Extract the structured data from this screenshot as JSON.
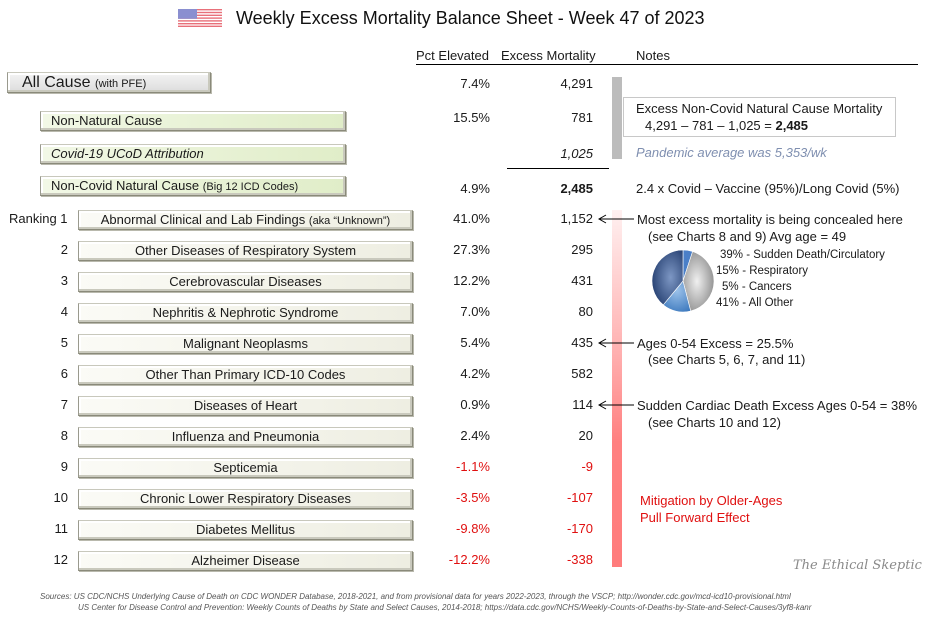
{
  "header": {
    "title": "Weekly Excess Mortality Balance Sheet - Week 47 of 2023",
    "flag_icon": "us-flag-icon"
  },
  "columns": {
    "pct_elevated": "Pct Elevated",
    "excess_mortality": "Excess Mortality",
    "notes": "Notes"
  },
  "summary_rows": [
    {
      "label": "All Cause",
      "suffix": "(with PFE)",
      "pct": "7.4%",
      "excess": "4,291"
    },
    {
      "label": "Non-Natural Cause",
      "suffix": "",
      "pct": "15.5%",
      "excess": "781"
    },
    {
      "label": "Covid-19 UCoD Attribution",
      "suffix": "",
      "pct": "",
      "excess": "1,025"
    },
    {
      "label": "Non-Covid Natural Cause",
      "suffix": "(Big 12 ICD Codes)",
      "pct": "4.9%",
      "excess": "2,485"
    }
  ],
  "ranking_label": "Ranking 1",
  "categories": [
    {
      "rank": "1",
      "label": "Abnormal Clinical and Lab Findings",
      "suffix": "(aka “Unknown”)",
      "pct": "41.0%",
      "excess": "1,152",
      "negative": false
    },
    {
      "rank": "2",
      "label": "Other Diseases of Respiratory System",
      "suffix": "",
      "pct": "27.3%",
      "excess": "295",
      "negative": false
    },
    {
      "rank": "3",
      "label": "Cerebrovascular Diseases",
      "suffix": "",
      "pct": "12.2%",
      "excess": "431",
      "negative": false
    },
    {
      "rank": "4",
      "label": "Nephritis & Nephrotic Syndrome",
      "suffix": "",
      "pct": "7.0%",
      "excess": "80",
      "negative": false
    },
    {
      "rank": "5",
      "label": "Malignant Neoplasms",
      "suffix": "",
      "pct": "5.4%",
      "excess": "435",
      "negative": false
    },
    {
      "rank": "6",
      "label": "Other Than Primary ICD-10 Codes",
      "suffix": "",
      "pct": "4.2%",
      "excess": "582",
      "negative": false
    },
    {
      "rank": "7",
      "label": "Diseases of Heart",
      "suffix": "",
      "pct": "0.9%",
      "excess": "114",
      "negative": false
    },
    {
      "rank": "8",
      "label": "Influenza and Pneumonia",
      "suffix": "",
      "pct": "2.4%",
      "excess": "20",
      "negative": false
    },
    {
      "rank": "9",
      "label": "Septicemia",
      "suffix": "",
      "pct": "-1.1%",
      "excess": "-9",
      "negative": true
    },
    {
      "rank": "10",
      "label": "Chronic Lower Respiratory Diseases",
      "suffix": "",
      "pct": "-3.5%",
      "excess": "-107",
      "negative": true
    },
    {
      "rank": "11",
      "label": "Diabetes Mellitus",
      "suffix": "",
      "pct": "-9.8%",
      "excess": "-170",
      "negative": true
    },
    {
      "rank": "12",
      "label": "Alzheimer Disease",
      "suffix": "",
      "pct": "-12.2%",
      "excess": "-338",
      "negative": true
    }
  ],
  "notes": {
    "calc_title": "Excess Non-Covid Natural Cause Mortality",
    "calc_expr": "4,291 – 781 – 1,025 = ",
    "calc_result": "2,485",
    "pandemic_avg": "Pandemic average was 5,353/wk",
    "covid_ratio": "2.4 x Covid – Vaccine (95%)/Long Covid (5%)",
    "concealed_1": "Most excess mortality is being concealed here",
    "concealed_2": "(see Charts 8 and 9) Avg age = 49",
    "ages_1": "Ages 0-54 Excess = 25.5%",
    "ages_2": "(see Charts 5, 6, 7, and 11)",
    "cardiac_1": "Sudden Cardiac Death Excess Ages 0-54 = 38%",
    "cardiac_2": "(see Charts 10 and 12)",
    "mitigation_1": "Mitigation by Older-Ages",
    "mitigation_2": "Pull Forward Effect"
  },
  "pie_legend": [
    "39% - Sudden Death/Circulatory",
    "15% - Respiratory",
    " 5%  - Cancers",
    "41% - All Other"
  ],
  "colors": {
    "negative": "#e01010",
    "note_italic": "#7f8fb0",
    "pie": [
      "#a8a8a8",
      "#5a8fd0",
      "#3b67a8",
      "#1f3d73"
    ]
  },
  "sources": {
    "line1": "Sources:   US CDC/NCHS Underlying  Cause of Death on CDC WONDER Database, 2018-2021, and from provisional data for years 2022-2023, through the VSCP; http://wonder.cdc.gov/mcd-icd10-provisional.html",
    "line2": "US Center for Disease Control and Prevention:  Weekly  Counts of Deaths by State and Select Causes, 2014-2018; https://data.cdc.gov/NCHS/Weekly-Counts-of-Deaths-by-State-and-Select-Causes/3yf8-kanr"
  },
  "watermark": "The Ethical Skeptic",
  "chart_data": {
    "type": "table",
    "title": "Weekly Excess Mortality Balance Sheet - Week 47 of 2023",
    "columns": [
      "Cause",
      "Pct Elevated",
      "Excess Mortality"
    ],
    "rows": [
      [
        "All Cause (with PFE)",
        7.4,
        4291
      ],
      [
        "Non-Natural Cause",
        15.5,
        781
      ],
      [
        "Covid-19 UCoD Attribution",
        null,
        1025
      ],
      [
        "Non-Covid Natural Cause (Big 12 ICD Codes)",
        4.9,
        2485
      ],
      [
        "Abnormal Clinical and Lab Findings",
        41.0,
        1152
      ],
      [
        "Other Diseases of Respiratory System",
        27.3,
        295
      ],
      [
        "Cerebrovascular Diseases",
        12.2,
        431
      ],
      [
        "Nephritis & Nephrotic Syndrome",
        7.0,
        80
      ],
      [
        "Malignant Neoplasms",
        5.4,
        435
      ],
      [
        "Other Than Primary ICD-10 Codes",
        4.2,
        582
      ],
      [
        "Diseases of Heart",
        0.9,
        114
      ],
      [
        "Influenza and Pneumonia",
        2.4,
        20
      ],
      [
        "Septicemia",
        -1.1,
        -9
      ],
      [
        "Chronic Lower Respiratory Diseases",
        -3.5,
        -107
      ],
      [
        "Diabetes Mellitus",
        -9.8,
        -170
      ],
      [
        "Alzheimer Disease",
        -12.2,
        -338
      ]
    ],
    "pie": {
      "type": "pie",
      "labels": [
        "Sudden Death/Circulatory",
        "Respiratory",
        "Cancers",
        "All Other"
      ],
      "values": [
        39,
        15,
        5,
        41
      ]
    }
  }
}
